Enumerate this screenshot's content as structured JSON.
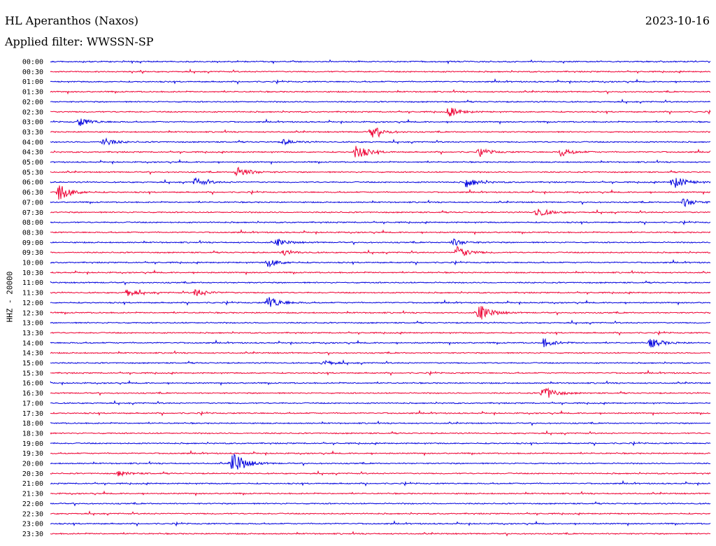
{
  "header": {
    "station": "HL Aperanthos (Naxos)",
    "filter": "Applied filter: WWSSN-SP",
    "date": "2023-10-16"
  },
  "channel_label": "HHZ - 20000",
  "colors": {
    "trace_a": "#0000dd",
    "trace_b": "#ee0033"
  },
  "chart_data": {
    "type": "line",
    "title": "HL Aperanthos (Naxos)",
    "ylabel": "HHZ - 20000",
    "rows": [
      "00:00",
      "00:30",
      "01:00",
      "01:30",
      "02:00",
      "02:30",
      "03:00",
      "03:30",
      "04:00",
      "04:30",
      "05:00",
      "05:30",
      "06:00",
      "06:30",
      "07:00",
      "07:30",
      "08:00",
      "08:30",
      "09:00",
      "09:30",
      "10:00",
      "10:30",
      "11:00",
      "11:30",
      "12:00",
      "12:30",
      "13:00",
      "13:30",
      "14:00",
      "14:30",
      "15:00",
      "15:30",
      "16:00",
      "16:30",
      "17:00",
      "17:30",
      "18:00",
      "18:30",
      "19:00",
      "19:30",
      "20:00",
      "20:30",
      "21:00",
      "21:30",
      "22:00",
      "22:30",
      "23:00",
      "23:30"
    ],
    "row_minutes": 30,
    "events": [
      {
        "row": "02:30",
        "minute": 18.1,
        "amp": 0.55
      },
      {
        "row": "03:00",
        "minute": 1.3,
        "amp": 0.5
      },
      {
        "row": "03:30",
        "minute": 14.6,
        "amp": 0.7
      },
      {
        "row": "04:00",
        "minute": 2.4,
        "amp": 0.5
      },
      {
        "row": "04:00",
        "minute": 10.6,
        "amp": 0.3
      },
      {
        "row": "04:30",
        "minute": 13.9,
        "amp": 0.9
      },
      {
        "row": "04:30",
        "minute": 19.5,
        "amp": 0.4
      },
      {
        "row": "04:30",
        "minute": 23.2,
        "amp": 0.5
      },
      {
        "row": "05:30",
        "minute": 8.5,
        "amp": 0.7
      },
      {
        "row": "06:00",
        "minute": 6.6,
        "amp": 0.5
      },
      {
        "row": "06:00",
        "minute": 18.9,
        "amp": 0.6
      },
      {
        "row": "06:00",
        "minute": 28.3,
        "amp": 0.8
      },
      {
        "row": "06:30",
        "minute": 0.4,
        "amp": 1.0
      },
      {
        "row": "07:00",
        "minute": 28.8,
        "amp": 0.5
      },
      {
        "row": "07:30",
        "minute": 22.1,
        "amp": 0.6
      },
      {
        "row": "09:00",
        "minute": 10.3,
        "amp": 0.4
      },
      {
        "row": "09:00",
        "minute": 18.3,
        "amp": 0.4
      },
      {
        "row": "09:30",
        "minute": 18.5,
        "amp": 0.7
      },
      {
        "row": "09:30",
        "minute": 10.6,
        "amp": 0.3
      },
      {
        "row": "10:00",
        "minute": 9.9,
        "amp": 0.5
      },
      {
        "row": "11:30",
        "minute": 3.5,
        "amp": 0.4
      },
      {
        "row": "11:30",
        "minute": 6.6,
        "amp": 0.5
      },
      {
        "row": "12:00",
        "minute": 9.9,
        "amp": 0.8
      },
      {
        "row": "12:30",
        "minute": 19.5,
        "amp": 1.0
      },
      {
        "row": "14:00",
        "minute": 22.4,
        "amp": 0.5
      },
      {
        "row": "14:00",
        "minute": 27.3,
        "amp": 0.6
      },
      {
        "row": "15:00",
        "minute": 12.4,
        "amp": 0.3
      },
      {
        "row": "16:30",
        "minute": 22.4,
        "amp": 0.9
      },
      {
        "row": "20:00",
        "minute": 8.3,
        "amp": 1.5
      },
      {
        "row": "20:30",
        "minute": 3.1,
        "amp": 0.3
      }
    ]
  }
}
